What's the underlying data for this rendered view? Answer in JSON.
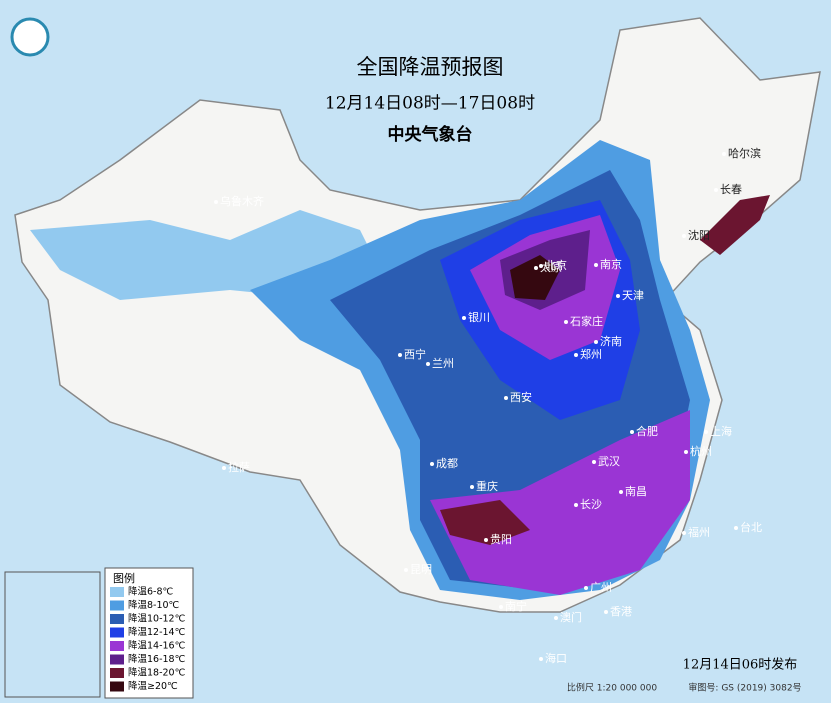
{
  "header": {
    "title": "全国降温预报图",
    "period": "12月14日08时—17日08时",
    "agency": "中央气象台"
  },
  "legend": {
    "title": "图例",
    "items": [
      {
        "label": "降温6-8℃",
        "color": "#92c9ef"
      },
      {
        "label": "降温8-10℃",
        "color": "#4f9de2"
      },
      {
        "label": "降温10-12℃",
        "color": "#2b5db3"
      },
      {
        "label": "降温12-14℃",
        "color": "#1f3fe6"
      },
      {
        "label": "降温14-16℃",
        "color": "#9a35d4"
      },
      {
        "label": "降温16-18℃",
        "color": "#5e1f8c"
      },
      {
        "label": "降温18-20℃",
        "color": "#6b1530"
      },
      {
        "label": "降温≥20℃",
        "color": "#350810"
      }
    ]
  },
  "cities": [
    "乌鲁木齐",
    "哈尔滨",
    "长春",
    "沈阳",
    "北京",
    "天津",
    "石家庄",
    "太原",
    "济南",
    "银川",
    "西宁",
    "兰州",
    "西安",
    "郑州",
    "合肥",
    "南京",
    "上海",
    "杭州",
    "武汉",
    "成都",
    "重庆",
    "长沙",
    "南昌",
    "贵阳",
    "昆明",
    "拉萨",
    "福州",
    "台北",
    "南宁",
    "广州",
    "香港",
    "澳门",
    "海口"
  ],
  "footer": {
    "release": "12月14日06时发布",
    "scale": "比例尺 1:20 000 000",
    "review": "审图号: GS (2019) 3082号"
  }
}
